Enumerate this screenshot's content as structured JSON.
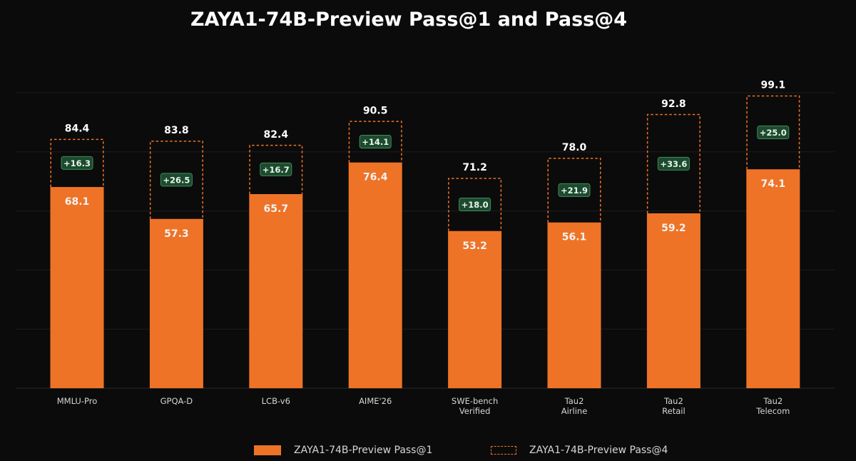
{
  "title": "ZAYA1-74B-Preview Pass@1 and Pass@4",
  "colors": {
    "background": "#0b0b0b",
    "bar": "#ee7327",
    "value_text": "#ffffff",
    "bar_label_text": "#f3f3f3",
    "delta_badge_bg": "#1d4a2f",
    "delta_badge_border": "#3f8c5a",
    "delta_badge_text": "#e6f5ea",
    "grid": "#1c1c1c",
    "tick_text": "#d6d6d6"
  },
  "chart_data": {
    "type": "bar",
    "categories": [
      [
        "MMLU-Pro"
      ],
      [
        "GPQA-D"
      ],
      [
        "LCB-v6"
      ],
      [
        "AIME'26"
      ],
      [
        "SWE-bench",
        "Verified"
      ],
      [
        "Tau2",
        "Airline"
      ],
      [
        "Tau2",
        "Retail"
      ],
      [
        "Tau2",
        "Telecom"
      ]
    ],
    "series": [
      {
        "name": "ZAYA1-74B-Preview Pass@1",
        "style": "solid",
        "values": [
          68.1,
          57.3,
          65.7,
          76.4,
          53.2,
          56.1,
          59.2,
          74.1
        ]
      },
      {
        "name": "ZAYA1-74B-Preview Pass@4",
        "style": "dashed",
        "values": [
          84.4,
          83.8,
          82.4,
          90.5,
          71.2,
          78.0,
          92.8,
          99.1
        ]
      }
    ],
    "delta_labels": [
      "+16.3",
      "+26.5",
      "+16.7",
      "+14.1",
      "+18.0",
      "+21.9",
      "+33.6",
      "+25.0"
    ],
    "ylim": [
      0,
      100
    ],
    "grid": true,
    "legend_position": "bottom-center",
    "xlabel": "",
    "ylabel": ""
  },
  "legend": {
    "pass1_label": "ZAYA1-74B-Preview Pass@1",
    "pass4_label": "ZAYA1-74B-Preview Pass@4"
  }
}
